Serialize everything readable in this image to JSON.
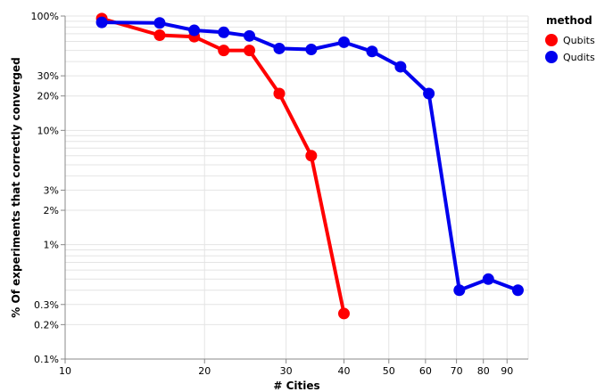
{
  "chart_data": {
    "type": "line",
    "xlabel": "# Cities",
    "ylabel": "% Of experiments that correctly converged",
    "xscale": "log",
    "yscale": "log",
    "xlim": [
      10,
      100
    ],
    "ylim": [
      0.1,
      100
    ],
    "x_ticks": [
      {
        "value": 10,
        "label": "10"
      },
      {
        "value": 20,
        "label": "20"
      },
      {
        "value": 30,
        "label": "30"
      },
      {
        "value": 40,
        "label": "40"
      },
      {
        "value": 50,
        "label": "50"
      },
      {
        "value": 60,
        "label": "60"
      },
      {
        "value": 70,
        "label": "70"
      },
      {
        "value": 80,
        "label": "80"
      },
      {
        "value": 90,
        "label": "90"
      }
    ],
    "y_ticks": [
      {
        "value": 0.1,
        "label": "0.1%"
      },
      {
        "value": 0.2,
        "label": "0.2%"
      },
      {
        "value": 0.3,
        "label": "0.3%"
      },
      {
        "value": 1,
        "label": "1%"
      },
      {
        "value": 2,
        "label": "2%"
      },
      {
        "value": 3,
        "label": "3%"
      },
      {
        "value": 10,
        "label": "10%"
      },
      {
        "value": 20,
        "label": "20%"
      },
      {
        "value": 30,
        "label": "30%"
      },
      {
        "value": 100,
        "label": "100%"
      }
    ],
    "grid": true,
    "legend": {
      "title": "method",
      "placement": "top-right"
    },
    "series": [
      {
        "name": "Qubits",
        "color": "#ff0000",
        "x": [
          12,
          16,
          19,
          22,
          25,
          29,
          34,
          40
        ],
        "y": [
          95,
          68,
          66,
          50,
          50,
          21,
          6,
          0.25
        ]
      },
      {
        "name": "Qudits",
        "color": "#0000ee",
        "x": [
          12,
          16,
          19,
          22,
          25,
          29,
          34,
          40,
          46,
          53,
          61,
          71,
          82,
          95
        ],
        "y": [
          88,
          87,
          75,
          72,
          67,
          52,
          51,
          59,
          49,
          36,
          21,
          0.4,
          0.5,
          0.4
        ]
      }
    ]
  }
}
